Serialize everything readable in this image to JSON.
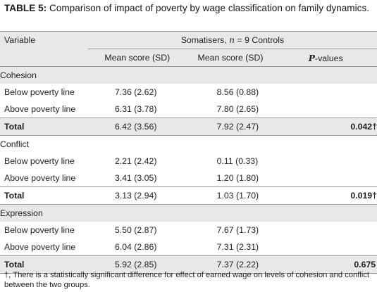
{
  "caption": {
    "label": "TABLE 5:",
    "text": " Comparison of impact of poverty by wage classification on family dynamics."
  },
  "header": {
    "variable": "Variable",
    "group_prefix": "Somatisers, ",
    "group_n": "n",
    "group_suffix": " = 9 Controls",
    "col1": "Mean score (SD)",
    "col2": "Mean score (SD)",
    "col3_italic": "P",
    "col3_suffix": "-values"
  },
  "sections": [
    {
      "title": "Cohesion",
      "rows": [
        {
          "label": "Below poverty line",
          "a": "7.36 (2.62)",
          "b": "8.56 (0.88)",
          "p": ""
        },
        {
          "label": "Above poverty line",
          "a": "6.31 (3.78)",
          "b": "7.80 (2.65)",
          "p": ""
        }
      ],
      "total": {
        "label": "Total",
        "a": "6.42 (3.56)",
        "b": "7.92 (2.47)",
        "p": "0.042†"
      }
    },
    {
      "title": "Conflict",
      "rows": [
        {
          "label": "Below poverty line",
          "a": "2.21 (2.42)",
          "b": "0.11 (0.33)",
          "p": ""
        },
        {
          "label": "Above poverty line",
          "a": "3.41 (3.05)",
          "b": "1.20 (1.80)",
          "p": ""
        }
      ],
      "total": {
        "label": "Total",
        "a": "3.13 (2.94)",
        "b": "1.03 (1.70)",
        "p": "0.019†"
      }
    },
    {
      "title": "Expression",
      "rows": [
        {
          "label": "Below poverty line",
          "a": "5.50 (2.87)",
          "b": "7.67 (1.73)",
          "p": ""
        },
        {
          "label": "Above poverty line",
          "a": "6.04 (2.86)",
          "b": "7.31 (2.31)",
          "p": ""
        }
      ],
      "total": {
        "label": "Total",
        "a": "5.92 (2.85)",
        "b": "7.37 (2.22)",
        "p": "0.675"
      }
    }
  ],
  "footnote": "†, There is a statistically significant difference for effect of earned wage on levels of cohesion and conflict between the two groups."
}
